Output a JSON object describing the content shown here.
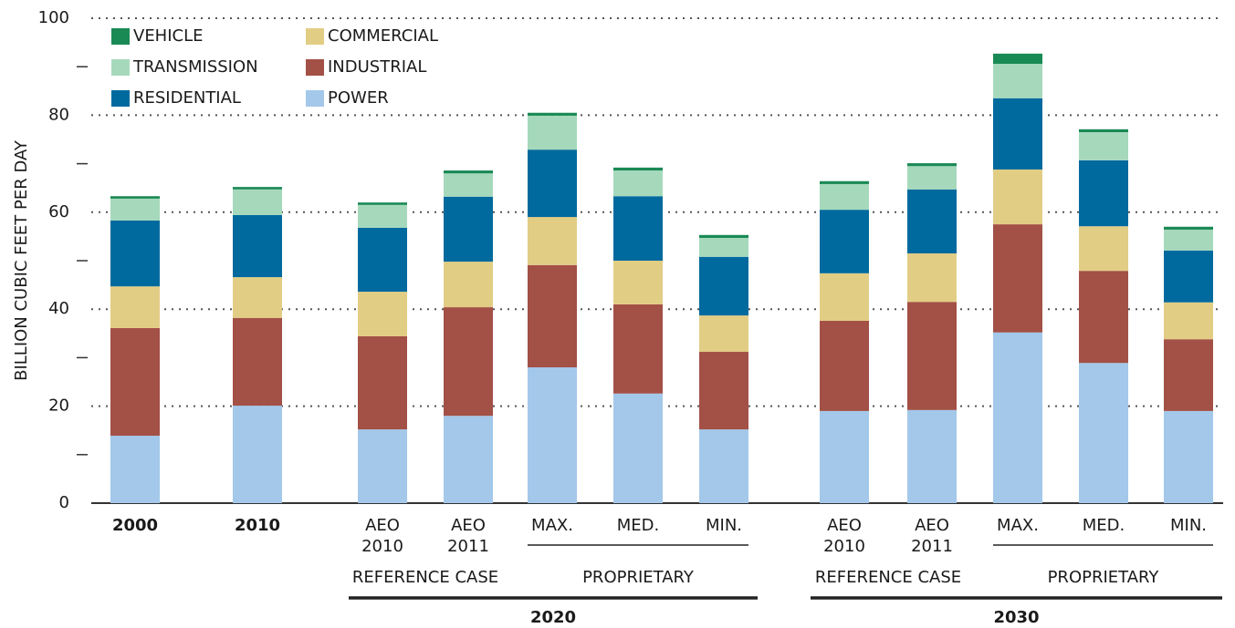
{
  "chart_data": {
    "type": "stacked_bar",
    "ylabel": "BILLION CUBIC FEET PER DAY",
    "categories": [
      "2000",
      "2010",
      "AEO 2010",
      "AEO 2011",
      "MAX.",
      "MED.",
      "MIN.",
      "AEO 2010",
      "AEO 2011",
      "MAX.",
      "MED.",
      "MIN."
    ],
    "series": [
      {
        "name": "POWER",
        "color": "#a3c8ea",
        "values": [
          13.9,
          20.1,
          15.2,
          18.0,
          28.0,
          22.6,
          15.2,
          19.0,
          19.2,
          35.2,
          28.9,
          19.0
        ]
      },
      {
        "name": "INDUSTRIAL",
        "color": "#a35046",
        "values": [
          22.2,
          18.1,
          19.2,
          22.4,
          21.1,
          18.4,
          16.0,
          18.6,
          22.3,
          22.3,
          19.0,
          14.8
        ]
      },
      {
        "name": "COMMERCIAL",
        "color": "#e2cd85",
        "values": [
          8.6,
          8.4,
          9.2,
          9.4,
          9.9,
          9.0,
          7.5,
          9.8,
          10.0,
          11.3,
          9.2,
          7.6
        ]
      },
      {
        "name": "RESIDENTIAL",
        "color": "#006a9e",
        "values": [
          13.6,
          12.8,
          13.2,
          13.4,
          13.9,
          13.3,
          12.1,
          13.1,
          13.2,
          14.7,
          13.6,
          10.7
        ]
      },
      {
        "name": "TRANSMISSION",
        "color": "#a6d9bc",
        "values": [
          4.5,
          5.3,
          4.7,
          4.8,
          7.0,
          5.3,
          3.9,
          5.3,
          4.8,
          7.1,
          5.8,
          4.3
        ]
      },
      {
        "name": "VEHICLE",
        "color": "#1a8a55",
        "values": [
          0.5,
          0.5,
          0.5,
          0.6,
          0.6,
          0.6,
          0.6,
          0.6,
          0.6,
          2.1,
          0.6,
          0.6
        ]
      }
    ],
    "ylim": [
      0,
      100
    ],
    "yticks": [
      0,
      20,
      40,
      60,
      80,
      100
    ],
    "yminorticks": [
      10,
      30,
      50,
      70,
      90
    ],
    "grid": true,
    "subgroups": [
      {
        "label": "REFERENCE CASE",
        "from": 2,
        "to": 3,
        "rule": false
      },
      {
        "label": "PROPRIETARY",
        "from": 4,
        "to": 6,
        "rule": true
      },
      {
        "label": "REFERENCE CASE",
        "from": 7,
        "to": 8,
        "rule": false
      },
      {
        "label": "PROPRIETARY",
        "from": 9,
        "to": 11,
        "rule": true
      }
    ],
    "groups": [
      {
        "label": "2020",
        "from": 2,
        "to": 6
      },
      {
        "label": "2030",
        "from": 7,
        "to": 11
      }
    ]
  }
}
